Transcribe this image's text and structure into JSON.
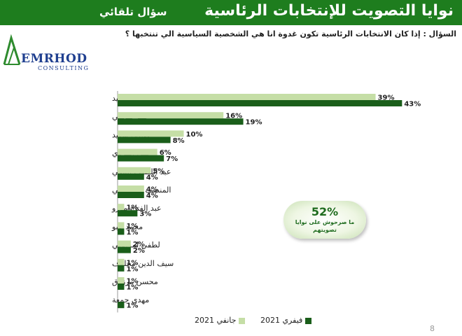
{
  "header": {
    "title": "نوايا التصويت للإنتخابات الرئاسية",
    "subtitle": "سؤال تلقائي"
  },
  "question": "السؤال : إذا كان الانتخابات الرئاسية تكون غدوة انا هي الشخصية السياسية الي تنتخبها ؟",
  "logo": {
    "name": "EMRHOD",
    "tagline": "CONSULTING"
  },
  "highlight": {
    "value": "52%",
    "caption": "ما صرحوش على نوايا تصويتهم"
  },
  "page_number": "8",
  "colors": {
    "banner": "#1e7d1e",
    "jan": "#c5dea6",
    "feb": "#1a5e1a"
  },
  "chart_data": {
    "type": "bar",
    "orientation": "horizontal",
    "categories": [
      "قيس سعيد",
      "عبير موسي",
      "صافي سعيد",
      "نبيل القروي",
      "عبد اللطيف المكي",
      "المنصف المرزوقي",
      "عبد الفتاح مورو",
      "محمد عبو",
      "لطفي لمرايحي",
      "سيف الدين مخلوف",
      "محسن مرزوق",
      "مهدي جمعة"
    ],
    "series": [
      {
        "name": "جانفي 2021",
        "values": [
          39,
          16,
          10,
          6,
          5,
          4,
          1,
          1,
          2,
          1,
          1,
          null
        ],
        "labels": [
          "39%",
          "16%",
          "10%",
          "6%",
          "5%",
          "4%",
          "1%",
          "1%",
          "2%",
          "1%",
          "1%",
          ""
        ]
      },
      {
        "name": "فيفري 2021",
        "values": [
          43,
          19,
          8,
          7,
          4,
          4,
          3,
          1,
          2,
          1,
          1,
          1
        ],
        "labels": [
          "43%",
          "19%",
          "8%",
          "7%",
          "4%",
          "4%",
          "3%",
          "1%",
          "2%",
          "1%",
          "1%",
          "1%"
        ]
      }
    ],
    "title": "",
    "xlabel": "",
    "ylabel": "",
    "xlim": [
      0,
      45
    ],
    "grid": false,
    "legend": "bottom"
  }
}
